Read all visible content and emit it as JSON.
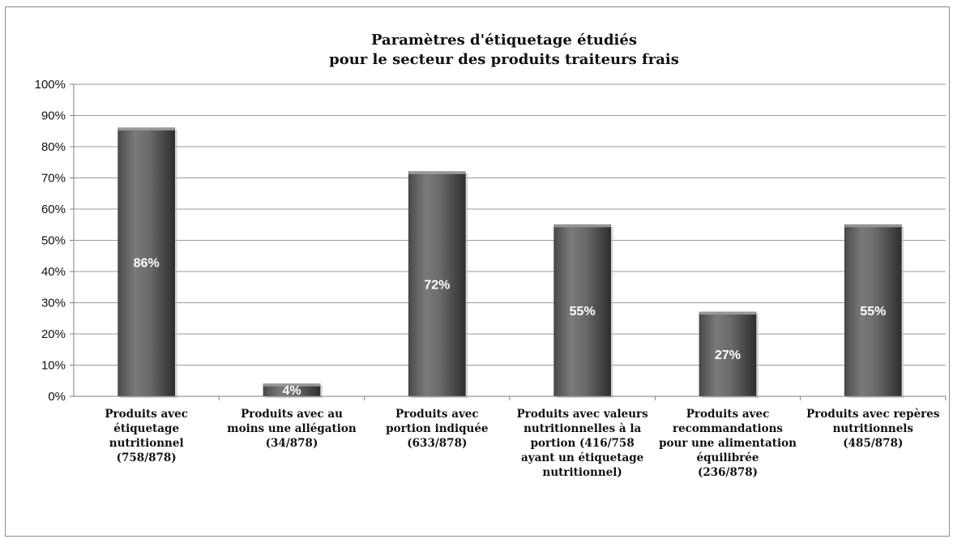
{
  "chart_data": {
    "type": "bar",
    "title": [
      "Paramètres d'étiquetage étudiés",
      "pour le secteur des produits traiteurs frais"
    ],
    "categories": [
      [
        "Produits avec",
        "étiquetage",
        "nutritionnel",
        "(758/878)"
      ],
      [
        "Produits avec au",
        "moins une allégation",
        "(34/878)"
      ],
      [
        "Produits avec",
        "portion indiquée",
        "(633/878)"
      ],
      [
        "Produits avec valeurs",
        "nutritionnelles à la",
        "portion (416/758",
        "ayant un étiquetage",
        "nutritionnel)"
      ],
      [
        "Produits avec",
        "recommandations",
        "pour une alimentation",
        "équilibrée",
        "(236/878)"
      ],
      [
        "Produits avec repères",
        "nutritionnels",
        "(485/878)"
      ]
    ],
    "values": [
      86,
      4,
      72,
      55,
      27,
      55
    ],
    "data_labels": [
      "86%",
      "4%",
      "72%",
      "55%",
      "27%",
      "55%"
    ],
    "yticks": [
      "0%",
      "10%",
      "20%",
      "30%",
      "40%",
      "50%",
      "60%",
      "70%",
      "80%",
      "90%",
      "100%"
    ],
    "ylim": [
      0,
      100
    ],
    "grid": true,
    "legend": "none",
    "colors": {
      "bar_dark": "#3c3c3c",
      "bar_mid": "#6a6a6a",
      "bar_light": "#8a8a8a",
      "grid": "#9a9a9a",
      "axis": "#808080"
    }
  }
}
